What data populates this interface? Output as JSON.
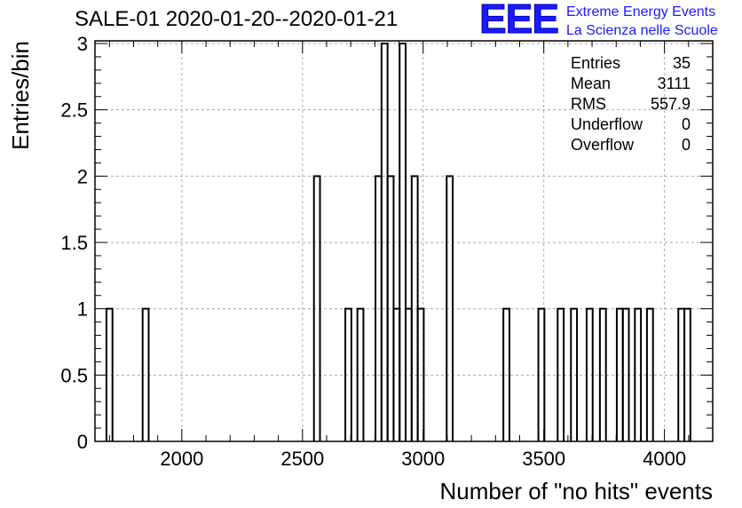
{
  "title": "SALE-01 2020-01-20--2020-01-21",
  "logo": {
    "mark": "EEE",
    "line1": "Extreme Energy Events",
    "line2": "La Scienza nelle Scuole",
    "color": "#1a1aff"
  },
  "stats": [
    {
      "label": "Entries",
      "value": "35"
    },
    {
      "label": "Mean",
      "value": "3111"
    },
    {
      "label": "RMS",
      "value": "557.9"
    },
    {
      "label": "Underflow",
      "value": "0"
    },
    {
      "label": "Overflow",
      "value": "0"
    }
  ],
  "chart_data": {
    "type": "bar",
    "histogram": true,
    "xlabel": "Number of \"no hits\" events",
    "ylabel": "Entries/bin",
    "xlim": [
      1640,
      4200
    ],
    "ylim": [
      0,
      3.02
    ],
    "bin_width": 25,
    "xticks": [
      2000,
      2500,
      3000,
      3500,
      4000
    ],
    "yticks": [
      0,
      0.5,
      1,
      1.5,
      2,
      2.5,
      3
    ],
    "ytick_labels": [
      "0",
      "0.5",
      "1",
      "1.5",
      "2",
      "2.5",
      "3"
    ],
    "grid": true,
    "line_color": "#000000",
    "bins": [
      {
        "x": 1700,
        "y": 1
      },
      {
        "x": 1850,
        "y": 1
      },
      {
        "x": 2560,
        "y": 2
      },
      {
        "x": 2690,
        "y": 1
      },
      {
        "x": 2740,
        "y": 1
      },
      {
        "x": 2815,
        "y": 2
      },
      {
        "x": 2840,
        "y": 3
      },
      {
        "x": 2865,
        "y": 2
      },
      {
        "x": 2890,
        "y": 1
      },
      {
        "x": 2915,
        "y": 3
      },
      {
        "x": 2940,
        "y": 1
      },
      {
        "x": 2965,
        "y": 2
      },
      {
        "x": 2990,
        "y": 1
      },
      {
        "x": 3110,
        "y": 2
      },
      {
        "x": 3345,
        "y": 1
      },
      {
        "x": 3490,
        "y": 1
      },
      {
        "x": 3570,
        "y": 1
      },
      {
        "x": 3625,
        "y": 1
      },
      {
        "x": 3690,
        "y": 1
      },
      {
        "x": 3745,
        "y": 1
      },
      {
        "x": 3815,
        "y": 1
      },
      {
        "x": 3840,
        "y": 1
      },
      {
        "x": 3890,
        "y": 1
      },
      {
        "x": 3940,
        "y": 1
      },
      {
        "x": 4070,
        "y": 1
      },
      {
        "x": 4095,
        "y": 1
      }
    ]
  }
}
